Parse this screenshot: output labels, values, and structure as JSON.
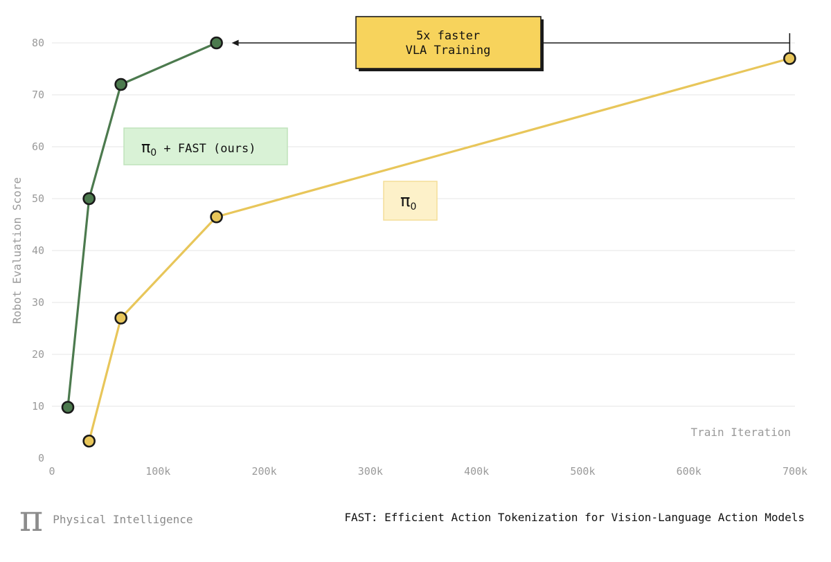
{
  "chart_data": {
    "type": "line",
    "title": "",
    "xlabel": "Train Iteration",
    "ylabel": "Robot Evaluation Score",
    "xlim": [
      0,
      700000
    ],
    "ylim": [
      0,
      80
    ],
    "x_ticks": [
      0,
      100000,
      200000,
      300000,
      400000,
      500000,
      600000,
      700000
    ],
    "x_tick_labels": [
      "0",
      "100k",
      "200k",
      "300k",
      "400k",
      "500k",
      "600k",
      "700k"
    ],
    "y_ticks": [
      0,
      10,
      20,
      30,
      40,
      50,
      60,
      70,
      80
    ],
    "y_tick_labels": [
      "0",
      "10",
      "20",
      "30",
      "40",
      "50",
      "60",
      "70",
      "80"
    ],
    "grid": "horizontal",
    "series": [
      {
        "name": "π₀ + FAST (ours)",
        "label_base": "π",
        "label_sub": "0",
        "label_rest": " + FAST (ours)",
        "color": "#4c7a4e",
        "label_bg": "#d9f2d6",
        "label_border": "#bfe3bb",
        "x": [
          15000,
          35000,
          65000,
          155000
        ],
        "y": [
          9.8,
          50,
          72,
          80
        ]
      },
      {
        "name": "π₀",
        "label_base": "π",
        "label_sub": "0",
        "label_rest": "",
        "color": "#e8c65a",
        "label_bg": "#fdf1c9",
        "label_border": "#f4de98",
        "x": [
          35000,
          65000,
          155000,
          695000
        ],
        "y": [
          3.3,
          27,
          46.5,
          77
        ]
      }
    ],
    "annotation": {
      "lines": [
        "5x faster",
        "VLA Training"
      ],
      "box_color": "#f7d35c",
      "arrow_from_x": 695000,
      "arrow_to_x": 155000,
      "arrow_y": 80
    }
  },
  "footer": {
    "logo_glyph": "π",
    "brand": "Physical Intelligence",
    "title": "FAST: Efficient Action Tokenization for Vision-Language Action Models"
  }
}
